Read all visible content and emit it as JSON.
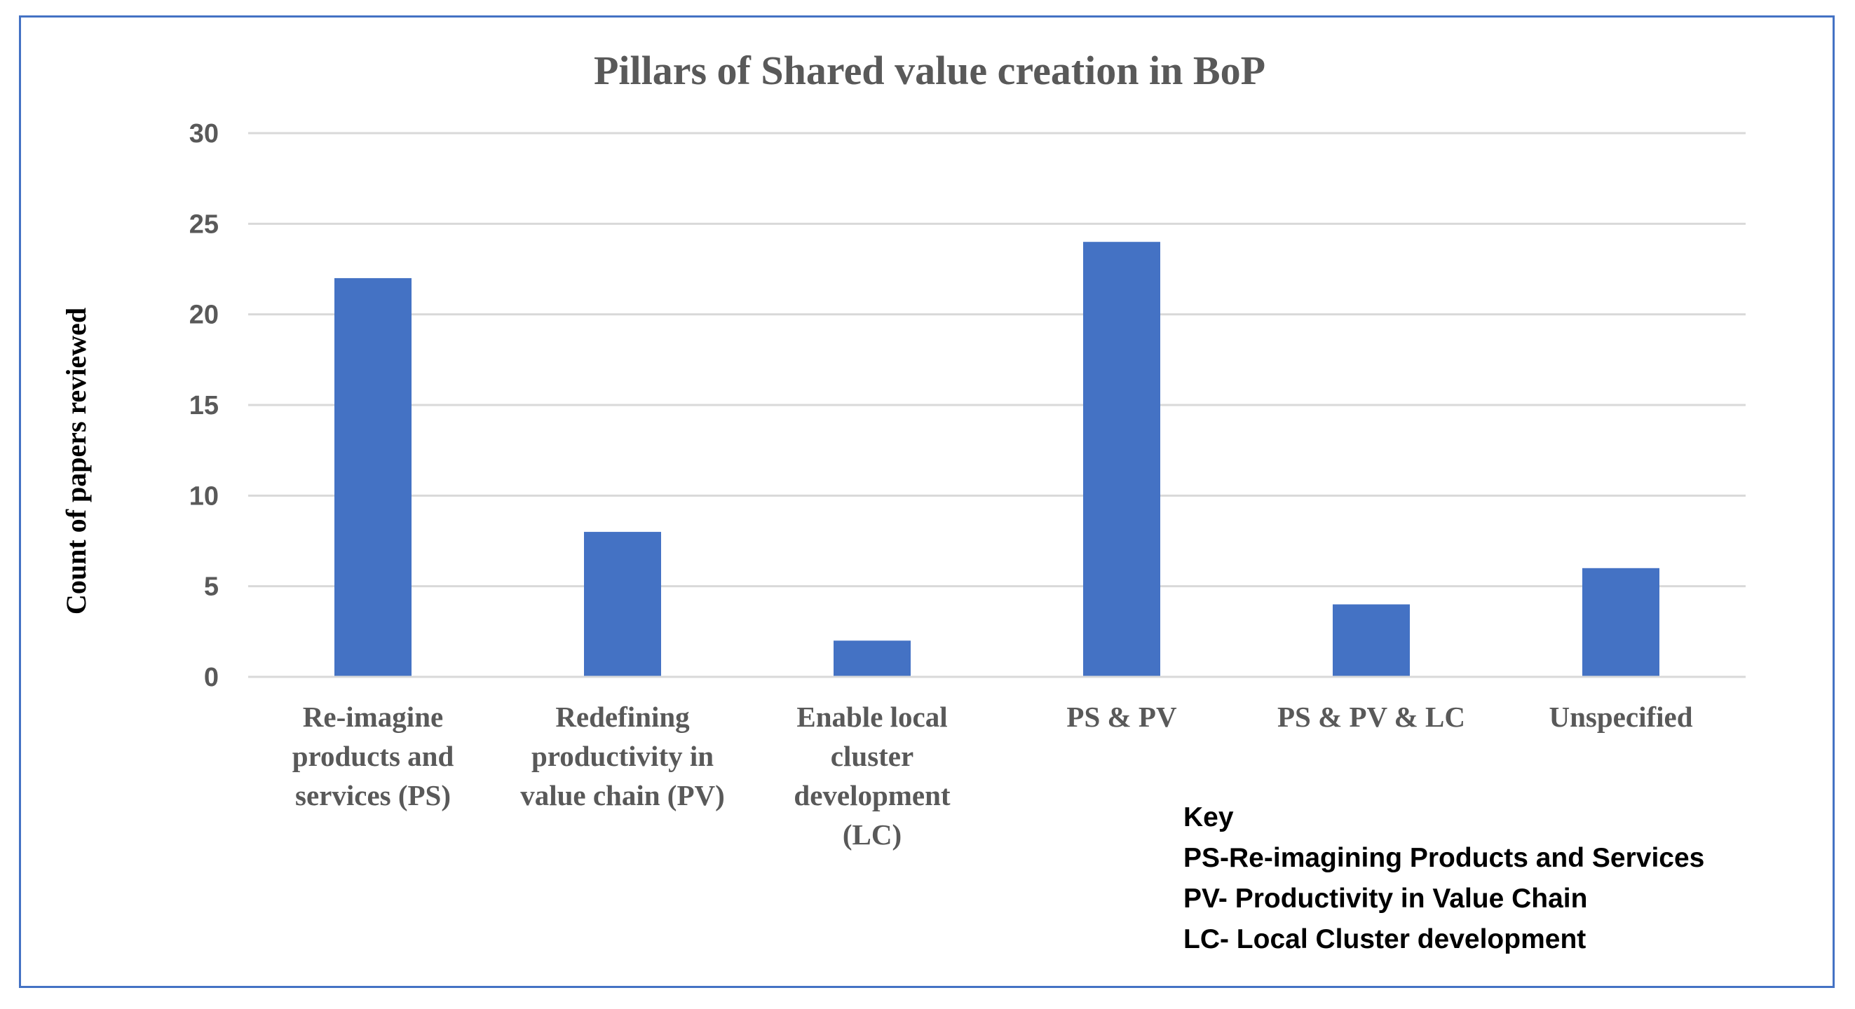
{
  "colors": {
    "bar": "#4472C4",
    "frame": "#4472C4",
    "grid": "#D9D9D9",
    "text": "#595959"
  },
  "chart_data": {
    "type": "bar",
    "title": "Pillars of Shared value creation in BoP",
    "xlabel": "",
    "ylabel": "Count of papers reviewed",
    "ylim": [
      0,
      30
    ],
    "yticks": [
      0,
      5,
      10,
      15,
      20,
      25,
      30
    ],
    "grid": true,
    "categories": [
      [
        "Re-imagine",
        "products and",
        "services (PS)"
      ],
      [
        "Redefining",
        "productivity in",
        "value chain (PV)"
      ],
      [
        "Enable local",
        "cluster",
        "development",
        "(LC)"
      ],
      [
        "PS & PV"
      ],
      [
        "PS & PV & LC"
      ],
      [
        "Unspecified"
      ]
    ],
    "values": [
      22,
      8,
      2,
      24,
      4,
      6
    ]
  },
  "key": {
    "heading": "Key",
    "lines": [
      "PS-Re-imagining Products and Services",
      "PV- Productivity in Value Chain",
      "LC- Local Cluster development"
    ]
  }
}
